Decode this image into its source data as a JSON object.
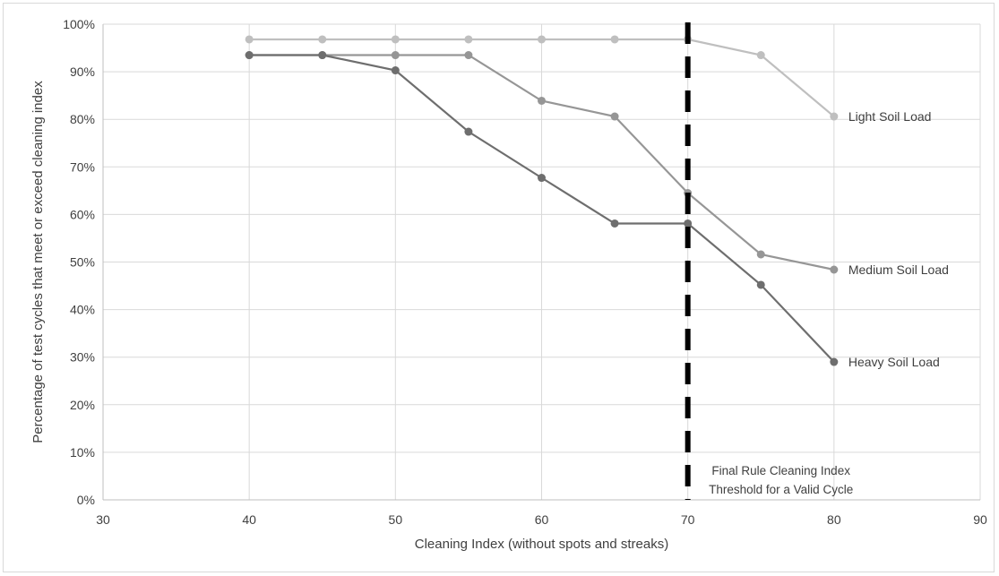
{
  "chart_data": {
    "type": "line",
    "title": "",
    "xlabel": "Cleaning Index (without spots and streaks)",
    "ylabel": "Percentage of test cycles that meet or exceed cleaning index",
    "xlim": [
      30,
      90
    ],
    "ylim": [
      0,
      100
    ],
    "x_ticks": [
      30,
      40,
      50,
      60,
      70,
      80,
      90
    ],
    "y_ticks": [
      0,
      10,
      20,
      30,
      40,
      50,
      60,
      70,
      80,
      90,
      100
    ],
    "y_tick_labels": [
      "0%",
      "10%",
      "20%",
      "30%",
      "40%",
      "50%",
      "60%",
      "70%",
      "80%",
      "90%",
      "100%"
    ],
    "grid": true,
    "legend": "inline labels at line ends",
    "x": [
      40,
      45,
      50,
      55,
      60,
      65,
      70,
      75,
      80
    ],
    "series": [
      {
        "name": "Light Soil Load",
        "color": "#bfbfbf",
        "values": [
          96.8,
          96.8,
          96.8,
          96.8,
          96.8,
          96.8,
          96.8,
          93.5,
          80.6
        ]
      },
      {
        "name": "Medium Soil Load",
        "color": "#969696",
        "values": [
          93.5,
          93.5,
          93.5,
          93.5,
          83.9,
          80.6,
          64.5,
          51.6,
          48.4
        ]
      },
      {
        "name": "Heavy Soil Load",
        "color": "#6e6e6e",
        "values": [
          93.5,
          93.5,
          90.3,
          77.4,
          67.7,
          58.1,
          58.1,
          45.2,
          29.0
        ]
      }
    ],
    "threshold": {
      "x": 70,
      "color": "#000000",
      "label_lines": [
        "Final Rule Cleaning Index",
        "Threshold for a Valid Cycle"
      ]
    }
  }
}
